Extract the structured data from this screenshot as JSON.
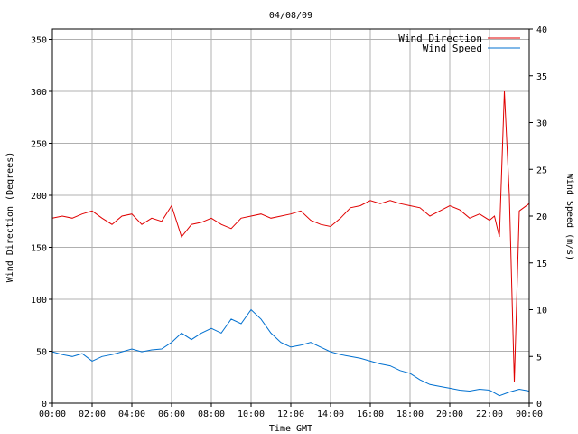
{
  "chart_data": {
    "type": "line",
    "title": "04/08/09",
    "xlabel": "Time GMT",
    "ylabel_left": "Wind Direction (Degrees)",
    "ylabel_right": "Wind Speed (m/s)",
    "x_unit": "hours GMT",
    "xlim": [
      0,
      24
    ],
    "ylim_left": [
      0,
      360
    ],
    "ylim_right": [
      0,
      40
    ],
    "grid": true,
    "legend_position": "top-right",
    "x_tick_labels": [
      "00:00",
      "02:00",
      "04:00",
      "06:00",
      "08:00",
      "10:00",
      "12:00",
      "14:00",
      "16:00",
      "18:00",
      "20:00",
      "22:00",
      "00:00"
    ],
    "x_tick_values": [
      0,
      2,
      4,
      6,
      8,
      10,
      12,
      14,
      16,
      18,
      20,
      22,
      24
    ],
    "y_left_ticks": [
      0,
      50,
      100,
      150,
      200,
      250,
      300,
      350
    ],
    "y_right_ticks": [
      0,
      5,
      10,
      15,
      20,
      25,
      30,
      35,
      40
    ],
    "series": [
      {
        "name": "Wind Direction",
        "axis": "left",
        "color": "#e00000",
        "x": [
          0,
          0.5,
          1,
          1.5,
          2,
          2.5,
          3,
          3.5,
          4,
          4.5,
          5,
          5.5,
          6,
          6.5,
          7,
          7.5,
          8,
          8.5,
          9,
          9.5,
          10,
          10.5,
          11,
          11.5,
          12,
          12.5,
          13,
          13.5,
          14,
          14.5,
          15,
          15.5,
          16,
          16.5,
          17,
          17.5,
          18,
          18.5,
          19,
          19.5,
          20,
          20.5,
          21,
          21.5,
          22,
          22.25,
          22.5,
          22.75,
          23,
          23.25,
          23.5,
          24
        ],
        "values": [
          178,
          180,
          178,
          182,
          185,
          178,
          172,
          180,
          182,
          172,
          178,
          175,
          190,
          160,
          172,
          174,
          178,
          172,
          168,
          178,
          180,
          182,
          178,
          180,
          182,
          185,
          176,
          172,
          170,
          178,
          188,
          190,
          195,
          192,
          195,
          192,
          190,
          188,
          180,
          185,
          190,
          186,
          178,
          182,
          176,
          180,
          160,
          300,
          200,
          20,
          185,
          192
        ]
      },
      {
        "name": "Wind Speed",
        "axis": "right",
        "color": "#0070d0",
        "x": [
          0,
          0.5,
          1,
          1.5,
          2,
          2.5,
          3,
          3.5,
          4,
          4.5,
          5,
          5.5,
          6,
          6.5,
          7,
          7.5,
          8,
          8.5,
          9,
          9.5,
          10,
          10.5,
          11,
          11.5,
          12,
          12.5,
          13,
          13.5,
          14,
          14.5,
          15,
          15.5,
          16,
          16.5,
          17,
          17.5,
          18,
          18.5,
          19,
          19.5,
          20,
          20.5,
          21,
          21.5,
          22,
          22.5,
          23,
          23.5,
          24
        ],
        "values": [
          5.5,
          5.2,
          5,
          5.3,
          4.5,
          5,
          5.2,
          5.5,
          5.8,
          5.5,
          5.7,
          5.8,
          6.5,
          7.5,
          6.8,
          7.5,
          8,
          7.5,
          9,
          8.5,
          10,
          9,
          7.5,
          6.5,
          6,
          6.2,
          6.5,
          6,
          5.5,
          5.2,
          5,
          4.8,
          4.5,
          4.2,
          4,
          3.5,
          3.2,
          2.5,
          2,
          1.8,
          1.6,
          1.4,
          1.3,
          1.5,
          1.4,
          0.8,
          1.2,
          1.5,
          1.3
        ]
      }
    ]
  }
}
